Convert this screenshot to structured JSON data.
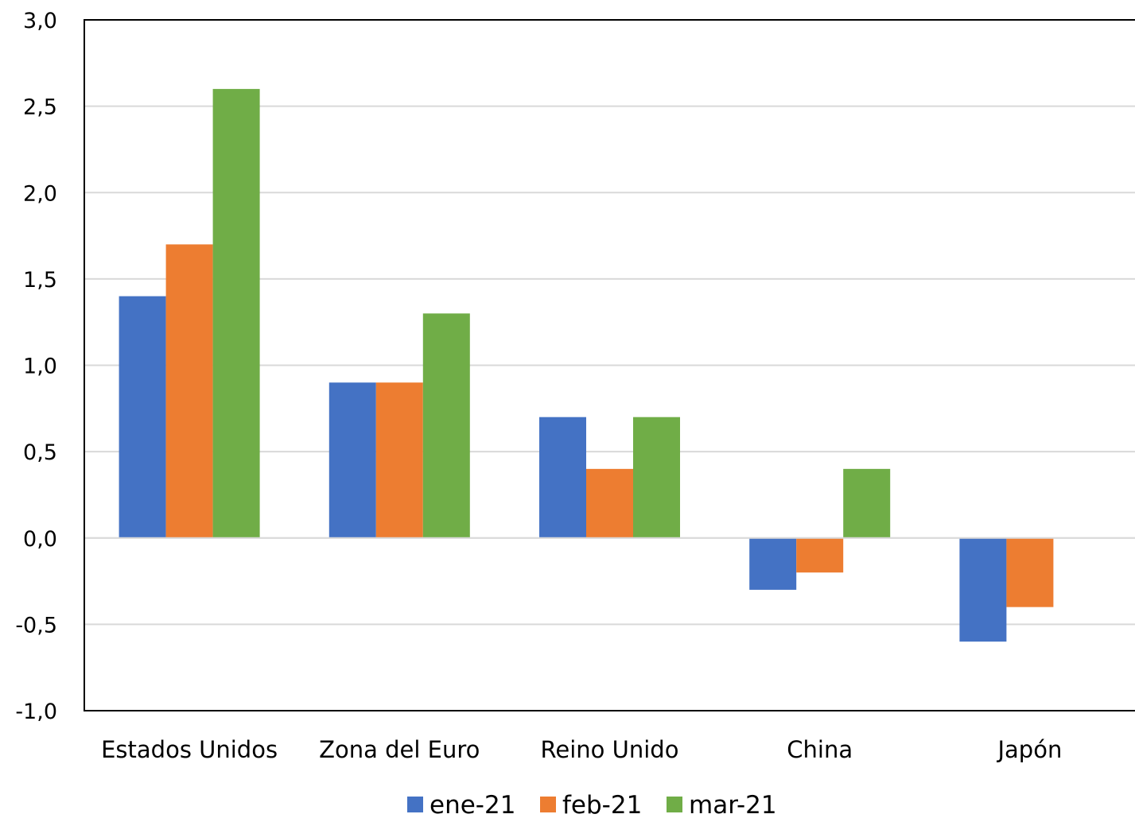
{
  "chart_data": {
    "type": "bar",
    "title": "",
    "xlabel": "",
    "ylabel": "",
    "categories": [
      "Estados Unidos",
      "Zona del Euro",
      "Reino Unido",
      "China",
      "Japón"
    ],
    "series": [
      {
        "name": "ene-21",
        "color": "#4472C4",
        "values": [
          1.4,
          0.9,
          0.7,
          -0.3,
          -0.6
        ]
      },
      {
        "name": "feb-21",
        "color": "#ED7D31",
        "values": [
          1.7,
          0.9,
          0.4,
          -0.2,
          -0.4
        ]
      },
      {
        "name": "mar-21",
        "color": "#70AD47",
        "values": [
          2.6,
          1.3,
          0.7,
          0.4,
          0.0
        ]
      }
    ],
    "ylim": [
      -1.0,
      3.0
    ],
    "yticks": [
      3.0,
      2.5,
      2.0,
      1.5,
      1.0,
      0.5,
      0.0,
      -0.5,
      -1.0
    ],
    "ytick_labels": [
      "3,0",
      "2,5",
      "2,0",
      "1,5",
      "1,0",
      "0,5",
      "0,0",
      "-0,5",
      "-1,0"
    ],
    "grid": true,
    "legend_position": "bottom"
  }
}
